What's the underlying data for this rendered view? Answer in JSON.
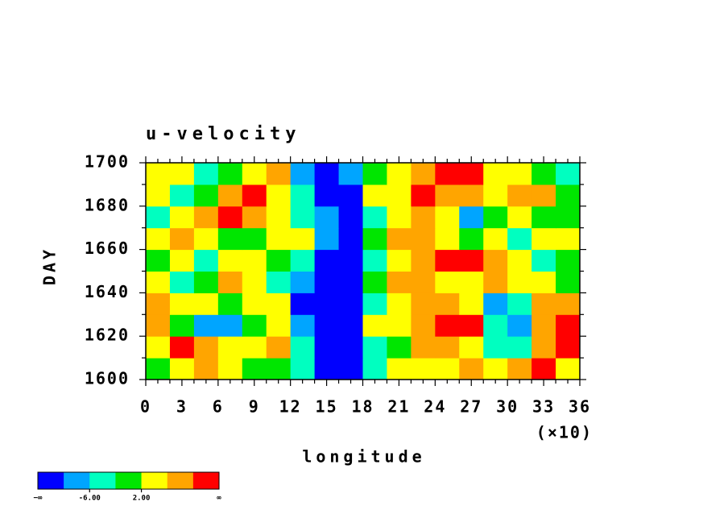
{
  "chart_data": {
    "type": "heatmap",
    "title": "u-velocity",
    "x_label": "longitude",
    "x_scale_note": "(×10)",
    "y_label": "DAY",
    "xlim": [
      0,
      36
    ],
    "ylim": [
      1600,
      1700
    ],
    "xticks": [
      0,
      3,
      6,
      9,
      12,
      15,
      18,
      21,
      24,
      27,
      30,
      33,
      36
    ],
    "xminorticks": [
      1,
      2,
      4,
      5,
      7,
      8,
      10,
      11,
      13,
      14,
      16,
      17,
      19,
      20,
      22,
      23,
      25,
      26,
      28,
      29,
      31,
      32,
      34,
      35
    ],
    "yticks": [
      1600,
      1620,
      1640,
      1660,
      1680,
      1700
    ],
    "yminorticks": [
      1610,
      1630,
      1650,
      1670,
      1690
    ],
    "x": [
      1,
      3,
      5,
      7,
      9,
      11,
      13,
      15,
      17,
      19,
      21,
      23,
      25,
      27,
      29,
      31,
      33,
      35
    ],
    "y": [
      1605,
      1615,
      1625,
      1635,
      1645,
      1655,
      1665,
      1675,
      1685,
      1695
    ],
    "z": [
      [
        1,
        3,
        7,
        2,
        -1,
        0,
        -4,
        -11,
        -12,
        -3,
        2,
        5,
        4,
        6,
        3,
        8,
        12,
        5
      ],
      [
        3,
        11,
        9,
        4,
        5,
        8,
        -3,
        -11,
        -12,
        -4,
        1,
        6,
        8,
        5,
        -5,
        -3,
        7,
        11
      ],
      [
        6,
        -2,
        -9,
        -7,
        0,
        4,
        -8,
        -12,
        -13,
        2,
        5,
        8,
        12,
        11,
        -3,
        -7,
        9,
        11
      ],
      [
        9,
        3,
        2,
        -2,
        5,
        3,
        -11,
        -13,
        -12,
        -6,
        4,
        7,
        8,
        5,
        -8,
        -3,
        6,
        8
      ],
      [
        4,
        -3,
        1,
        6,
        3,
        -4,
        -10,
        -12,
        -11,
        -1,
        7,
        9,
        5,
        3,
        6,
        4,
        2,
        -1
      ],
      [
        -2,
        3,
        -4,
        2,
        5,
        -1,
        -5,
        -11,
        -13,
        -4,
        3,
        7,
        11,
        12,
        6,
        3,
        -3,
        1
      ],
      [
        5,
        6,
        3,
        -2,
        1,
        2,
        4,
        -10,
        -12,
        -2,
        6,
        8,
        4,
        -1,
        2,
        -3,
        5,
        2
      ],
      [
        -4,
        3,
        7,
        10,
        8,
        2,
        -3,
        -9,
        -12,
        -3,
        4,
        7,
        5,
        -7,
        -2,
        4,
        1,
        -2
      ],
      [
        3,
        -6,
        1,
        9,
        11,
        5,
        -4,
        -12,
        -11,
        2,
        5,
        10,
        9,
        6,
        3,
        9,
        8,
        -1
      ],
      [
        2,
        5,
        -3,
        -1,
        4,
        6,
        -7,
        -12,
        -9,
        -1,
        5,
        7,
        11,
        10,
        4,
        2,
        -2,
        -4
      ]
    ],
    "colorbar": {
      "levels": [
        -10,
        -6,
        -2,
        2,
        6,
        10
      ],
      "colors": [
        "#0000ff",
        "#00a5ff",
        "#00ffc0",
        "#00e600",
        "#ffff00",
        "#ffa500",
        "#ff0000"
      ],
      "low_label": "−∞",
      "high_label": "∞",
      "ticks": [
        {
          "value": -6,
          "label": "-6.00"
        },
        {
          "value": 2,
          "label": "2.00"
        }
      ]
    }
  }
}
